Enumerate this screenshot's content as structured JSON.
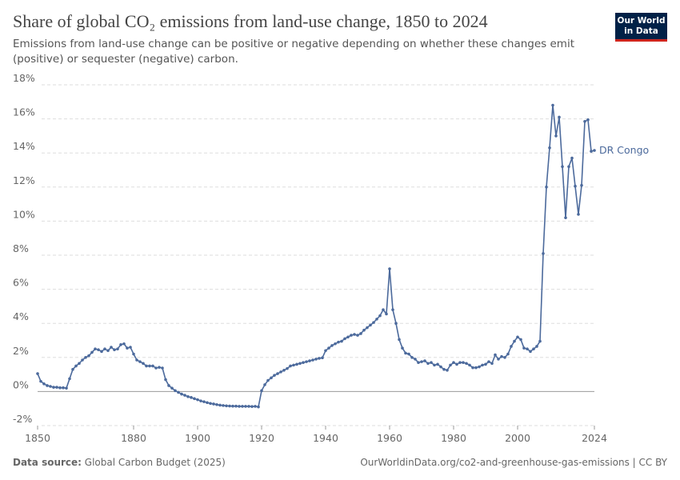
{
  "chart_data": {
    "type": "line",
    "title": "Share of global CO₂ emissions from land-use change, 1850 to 2024",
    "subtitle": "Emissions from land-use change can be positive or negative depending on whether these changes emit (positive) or sequester (negative) carbon.",
    "logo": [
      "Our World",
      "in Data"
    ],
    "source_label": "Data source:",
    "source": "Global Carbon Budget (2025)",
    "url": "OurWorldinData.org/co2-and-greenhouse-gas-emissions | CC BY",
    "x": [
      1850,
      1851,
      1852,
      1853,
      1854,
      1855,
      1856,
      1857,
      1858,
      1859,
      1860,
      1861,
      1862,
      1863,
      1864,
      1865,
      1866,
      1867,
      1868,
      1869,
      1870,
      1871,
      1872,
      1873,
      1874,
      1875,
      1876,
      1877,
      1878,
      1879,
      1880,
      1881,
      1882,
      1883,
      1884,
      1885,
      1886,
      1887,
      1888,
      1889,
      1890,
      1891,
      1892,
      1893,
      1894,
      1895,
      1896,
      1897,
      1898,
      1899,
      1900,
      1901,
      1902,
      1903,
      1904,
      1905,
      1906,
      1907,
      1908,
      1909,
      1910,
      1911,
      1912,
      1913,
      1914,
      1915,
      1916,
      1917,
      1918,
      1919,
      1920,
      1921,
      1922,
      1923,
      1924,
      1925,
      1926,
      1927,
      1928,
      1929,
      1930,
      1931,
      1932,
      1933,
      1934,
      1935,
      1936,
      1937,
      1938,
      1939,
      1940,
      1941,
      1942,
      1943,
      1944,
      1945,
      1946,
      1947,
      1948,
      1949,
      1950,
      1951,
      1952,
      1953,
      1954,
      1955,
      1956,
      1957,
      1958,
      1959,
      1960,
      1961,
      1962,
      1963,
      1964,
      1965,
      1966,
      1967,
      1968,
      1969,
      1970,
      1971,
      1972,
      1973,
      1974,
      1975,
      1976,
      1977,
      1978,
      1979,
      1980,
      1981,
      1982,
      1983,
      1984,
      1985,
      1986,
      1987,
      1988,
      1989,
      1990,
      1991,
      1992,
      1993,
      1994,
      1995,
      1996,
      1997,
      1998,
      1999,
      2000,
      2001,
      2002,
      2003,
      2004,
      2005,
      2006,
      2007,
      2008,
      2009,
      2010,
      2011,
      2012,
      2013,
      2014,
      2015,
      2016,
      2017,
      2018,
      2019,
      2020,
      2021,
      2022,
      2023,
      2024
    ],
    "series": [
      {
        "name": "DR Congo",
        "color": "#4c6a9c",
        "values": [
          1.05,
          0.6,
          0.45,
          0.35,
          0.3,
          0.25,
          0.25,
          0.22,
          0.22,
          0.2,
          0.75,
          1.3,
          1.5,
          1.65,
          1.85,
          2.0,
          2.1,
          2.3,
          2.5,
          2.45,
          2.35,
          2.5,
          2.4,
          2.6,
          2.45,
          2.5,
          2.75,
          2.8,
          2.55,
          2.6,
          2.2,
          1.85,
          1.75,
          1.65,
          1.5,
          1.5,
          1.5,
          1.38,
          1.42,
          1.38,
          0.7,
          0.35,
          0.2,
          0.05,
          -0.05,
          -0.15,
          -0.22,
          -0.3,
          -0.35,
          -0.42,
          -0.48,
          -0.55,
          -0.6,
          -0.65,
          -0.7,
          -0.73,
          -0.77,
          -0.8,
          -0.82,
          -0.84,
          -0.85,
          -0.86,
          -0.86,
          -0.87,
          -0.87,
          -0.87,
          -0.87,
          -0.88,
          -0.87,
          -0.9,
          0.05,
          0.4,
          0.65,
          0.8,
          0.95,
          1.05,
          1.15,
          1.25,
          1.35,
          1.5,
          1.55,
          1.6,
          1.65,
          1.7,
          1.75,
          1.8,
          1.85,
          1.9,
          1.95,
          1.98,
          2.4,
          2.55,
          2.7,
          2.8,
          2.9,
          2.95,
          3.1,
          3.2,
          3.3,
          3.35,
          3.3,
          3.4,
          3.6,
          3.75,
          3.9,
          4.05,
          4.25,
          4.45,
          4.8,
          4.55,
          7.2,
          4.8,
          4.0,
          3.05,
          2.55,
          2.25,
          2.2,
          2.0,
          1.9,
          1.7,
          1.75,
          1.8,
          1.65,
          1.7,
          1.55,
          1.6,
          1.45,
          1.3,
          1.25,
          1.55,
          1.7,
          1.6,
          1.7,
          1.7,
          1.65,
          1.55,
          1.4,
          1.4,
          1.45,
          1.55,
          1.6,
          1.75,
          1.65,
          2.15,
          1.9,
          2.05,
          2.0,
          2.2,
          2.65,
          2.95,
          3.2,
          3.05,
          2.55,
          2.5,
          2.35,
          2.5,
          2.65,
          2.95,
          8.1,
          12.0,
          14.3,
          16.8,
          15.0,
          16.1,
          13.2,
          10.2,
          13.2,
          13.7,
          12.05,
          10.4,
          12.1,
          15.85,
          15.95,
          14.1,
          14.15
        ]
      }
    ],
    "xlim": [
      1850,
      2024
    ],
    "xticks": [
      1850,
      1880,
      1900,
      1920,
      1940,
      1960,
      1980,
      2000,
      2024
    ],
    "ylim": [
      -2,
      18
    ],
    "yticks": [
      {
        "value": -2,
        "label": "-2%"
      },
      {
        "value": 0,
        "label": "0%"
      },
      {
        "value": 2,
        "label": "2%"
      },
      {
        "value": 4,
        "label": "4%"
      },
      {
        "value": 6,
        "label": "6%"
      },
      {
        "value": 8,
        "label": "8%"
      },
      {
        "value": 10,
        "label": "10%"
      },
      {
        "value": 12,
        "label": "12%"
      },
      {
        "value": 14,
        "label": "14%"
      },
      {
        "value": 16,
        "label": "16%"
      },
      {
        "value": 18,
        "label": "18%"
      }
    ],
    "grid": true
  }
}
